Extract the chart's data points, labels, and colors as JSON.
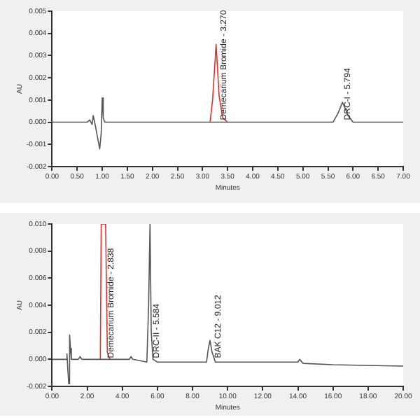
{
  "chart_data": [
    {
      "type": "line",
      "xlabel": "Minutes",
      "ylabel": "AU",
      "xlim": [
        0,
        7
      ],
      "ylim": [
        -0.002,
        0.005
      ],
      "xticks": [
        {
          "value": 0,
          "label": "0.00"
        },
        {
          "value": 0.5,
          "label": "0.50"
        },
        {
          "value": 1,
          "label": "1.00"
        },
        {
          "value": 1.5,
          "label": "1.50"
        },
        {
          "value": 2,
          "label": "2.00"
        },
        {
          "value": 2.5,
          "label": "2.50"
        },
        {
          "value": 3,
          "label": "3.00"
        },
        {
          "value": 3.5,
          "label": "3.50"
        },
        {
          "value": 4,
          "label": "4.00"
        },
        {
          "value": 4.5,
          "label": "4.50"
        },
        {
          "value": 5,
          "label": "5.00"
        },
        {
          "value": 5.5,
          "label": "5.50"
        },
        {
          "value": 6,
          "label": "6.00"
        },
        {
          "value": 6.5,
          "label": "6.50"
        },
        {
          "value": 7,
          "label": "7.00"
        }
      ],
      "yticks": [
        {
          "value": -0.002,
          "label": "-0.002"
        },
        {
          "value": -0.001,
          "label": "-0.001"
        },
        {
          "value": 0,
          "label": "0.000"
        },
        {
          "value": 0.001,
          "label": "0.001"
        },
        {
          "value": 0.002,
          "label": "0.002"
        },
        {
          "value": 0.003,
          "label": "0.003"
        },
        {
          "value": 0.004,
          "label": "0.004"
        },
        {
          "value": 0.005,
          "label": "0.005"
        }
      ],
      "grid": false,
      "legend": false,
      "marker": "none",
      "line_style": "solid",
      "series": [
        {
          "color": "#555555",
          "x": [
            0,
            0.6,
            0.7,
            0.75,
            0.8,
            0.82,
            0.85,
            0.9,
            0.95,
            0.98,
            1.0,
            1.02,
            1.05,
            1.2,
            2,
            3.15,
            3.5,
            5,
            5.6,
            5.7,
            5.79,
            5.9,
            6,
            7
          ],
          "values": [
            0,
            0,
            0,
            0.0001,
            -0.0001,
            0.0003,
            0,
            -0.0006,
            -0.0012,
            -0.0005,
            0.0011,
            0.0002,
            0,
            0,
            0,
            0,
            0,
            0,
            0,
            0.0004,
            0.0009,
            0.0003,
            0,
            0
          ]
        },
        {
          "color": "#e0302a",
          "x": [
            3.15,
            3.2,
            3.27,
            3.33,
            3.4,
            3.5
          ],
          "values": [
            0,
            0.001,
            0.0035,
            0.0012,
            0.0002,
            0
          ]
        }
      ],
      "annotations": [
        {
          "text": "Demecarium Bromide - 3.270",
          "x": 3.42,
          "y": 0.0001
        },
        {
          "text": "DRC-I - 5.794",
          "x": 5.9,
          "y": 0.0001
        }
      ]
    },
    {
      "type": "line",
      "xlabel": "Minutes",
      "ylabel": "AU",
      "xlim": [
        0,
        20
      ],
      "ylim": [
        -0.002,
        0.01
      ],
      "xticks": [
        {
          "value": 0,
          "label": "0.00"
        },
        {
          "value": 2,
          "label": "2.00"
        },
        {
          "value": 4,
          "label": "4.00"
        },
        {
          "value": 6,
          "label": "6.00"
        },
        {
          "value": 8,
          "label": "8.00"
        },
        {
          "value": 10,
          "label": "10.00"
        },
        {
          "value": 12,
          "label": "12.00"
        },
        {
          "value": 14,
          "label": "14.00"
        },
        {
          "value": 16,
          "label": "16.00"
        },
        {
          "value": 18,
          "label": "18.00"
        },
        {
          "value": 20,
          "label": "20.00"
        }
      ],
      "yticks": [
        {
          "value": -0.002,
          "label": "-0.002"
        },
        {
          "value": 0,
          "label": "0.000"
        },
        {
          "value": 0.002,
          "label": "0.002"
        },
        {
          "value": 0.004,
          "label": "0.004"
        },
        {
          "value": 0.006,
          "label": "0.006"
        },
        {
          "value": 0.008,
          "label": "0.008"
        },
        {
          "value": 0.01,
          "label": "0.010"
        }
      ],
      "grid": false,
      "legend": false,
      "marker": "none",
      "line_style": "solid",
      "series": [
        {
          "color": "#555555",
          "x": [
            0,
            0.8,
            0.85,
            0.9,
            0.95,
            1.0,
            1.05,
            1.1,
            1.2,
            1.5,
            1.6,
            1.7,
            2.75,
            3.3,
            4.4,
            4.5,
            4.6,
            5.4,
            5.5,
            5.58,
            5.65,
            5.75,
            6,
            8.8,
            8.9,
            9.0,
            9.1,
            9.3,
            12,
            14,
            14.1,
            14.3,
            16,
            20
          ],
          "values": [
            0,
            0,
            0.0004,
            -0.0008,
            -0.0018,
            0.0018,
            0.0008,
            0,
            0,
            0,
            0.0002,
            0,
            0,
            0,
            0,
            0.0002,
            0,
            -0.0002,
            0.004,
            0.01,
            0.002,
            0,
            -0.0002,
            -0.0002,
            0.0008,
            0.0014,
            0.0006,
            -0.0002,
            -0.0002,
            -0.0002,
            0,
            -0.0003,
            -0.0004,
            -0.0005
          ]
        },
        {
          "color": "#e0302a",
          "x": [
            2.75,
            2.8,
            3.05,
            3.15,
            3.3
          ],
          "values": [
            0,
            0.01,
            0.01,
            0.0005,
            0
          ]
        }
      ],
      "annotations": [
        {
          "text": "Demecarium Bromide - 2.838",
          "x": 3.35,
          "y": 0.0001
        },
        {
          "text": "DRC-II - 5.584",
          "x": 5.95,
          "y": 0.0001
        },
        {
          "text": "BAK C12 - 9.012",
          "x": 9.45,
          "y": 0.0001
        }
      ]
    }
  ]
}
